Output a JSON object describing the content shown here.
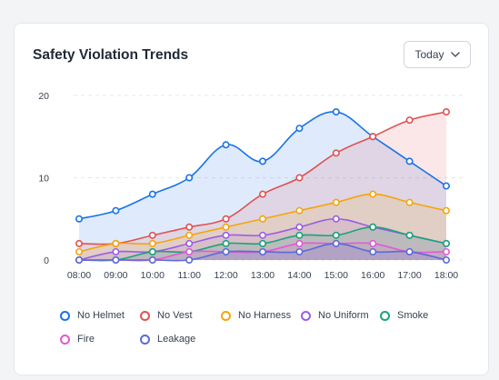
{
  "header": {
    "title": "Safety Violation Trends",
    "range_label": "Today"
  },
  "chart_data": {
    "type": "area",
    "title": "Safety Violation Trends",
    "x": [
      "08:00",
      "09:00",
      "10:00",
      "11:00",
      "12:00",
      "13:00",
      "14:00",
      "15:00",
      "16:00",
      "17:00",
      "18:00"
    ],
    "yticks": [
      "0",
      "10",
      "20"
    ],
    "ylim": [
      0,
      20
    ],
    "grid": true,
    "legend_position": "bottom",
    "series": [
      {
        "name": "No Helmet",
        "color": "#1a73e8",
        "values": [
          5,
          6,
          8,
          10,
          14,
          12,
          16,
          18,
          15,
          12,
          9
        ]
      },
      {
        "name": "No Vest",
        "color": "#e05252",
        "values": [
          2,
          2,
          3,
          4,
          5,
          8,
          10,
          13,
          15,
          17,
          18
        ]
      },
      {
        "name": "No Harness",
        "color": "#f4a50c",
        "values": [
          1,
          2,
          2,
          3,
          4,
          5,
          6,
          7,
          8,
          7,
          6
        ]
      },
      {
        "name": "No Uniform",
        "color": "#9b5de5",
        "values": [
          0,
          1,
          1,
          2,
          3,
          3,
          4,
          5,
          4,
          3,
          2
        ]
      },
      {
        "name": "Smoke",
        "color": "#1aa37a",
        "values": [
          0,
          0,
          1,
          1,
          2,
          2,
          3,
          3,
          4,
          3,
          2
        ]
      },
      {
        "name": "Fire",
        "color": "#e15ad6",
        "values": [
          0,
          0,
          0,
          1,
          1,
          1,
          2,
          2,
          2,
          1,
          1
        ]
      },
      {
        "name": "Leakage",
        "color": "#5b6bd8",
        "values": [
          0,
          0,
          0,
          0,
          1,
          1,
          1,
          2,
          1,
          1,
          0
        ]
      }
    ]
  }
}
